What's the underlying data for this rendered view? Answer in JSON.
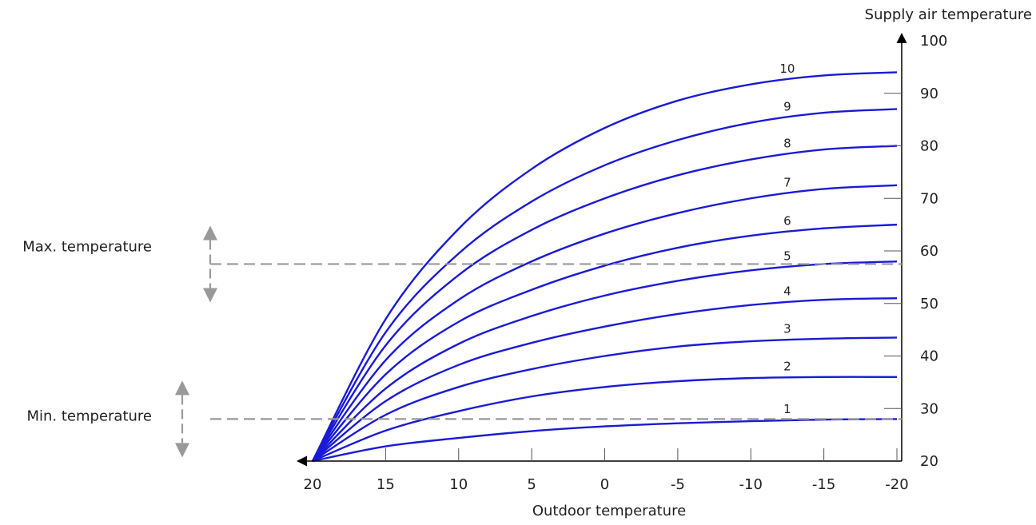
{
  "chart_data": {
    "type": "line",
    "title": "",
    "xlabel": "Outdoor temperature",
    "ylabel": "Supply air temperature",
    "xlim": [
      20,
      -20
    ],
    "ylim": [
      20,
      100
    ],
    "x_ticks": [
      20,
      15,
      10,
      5,
      0,
      -5,
      -10,
      -15,
      -20
    ],
    "y_ticks": [
      20,
      30,
      40,
      50,
      60,
      70,
      80,
      90,
      100
    ],
    "grid": false,
    "legend": "none",
    "line_color": "#1a1ad6",
    "guide_color": "#999999",
    "x": [
      20,
      15,
      10,
      5,
      0,
      -5,
      -10,
      -15,
      -20
    ],
    "series": [
      {
        "name": "1",
        "values": [
          20,
          22.8,
          24.4,
          25.7,
          26.6,
          27.2,
          27.6,
          27.9,
          28
        ]
      },
      {
        "name": "2",
        "values": [
          20,
          25.8,
          29.5,
          32.3,
          34.1,
          35.2,
          35.8,
          36,
          36
        ]
      },
      {
        "name": "3",
        "values": [
          20,
          28.8,
          34.1,
          37.5,
          40,
          41.8,
          42.8,
          43.3,
          43.5
        ]
      },
      {
        "name": "4",
        "values": [
          20,
          31.4,
          38.3,
          42.5,
          45.6,
          48,
          49.7,
          50.7,
          51
        ]
      },
      {
        "name": "5",
        "values": [
          20,
          33.8,
          42.3,
          47.6,
          51.5,
          54.3,
          56.3,
          57.5,
          58
        ]
      },
      {
        "name": "6",
        "values": [
          20,
          36.5,
          46.5,
          52.6,
          57.2,
          60.6,
          62.9,
          64.3,
          65
        ]
      },
      {
        "name": "7",
        "values": [
          20,
          39.2,
          50.7,
          58,
          63.3,
          67.2,
          70,
          71.8,
          72.5
        ]
      },
      {
        "name": "8",
        "values": [
          20,
          42,
          55.4,
          64,
          70,
          74.4,
          77.4,
          79.3,
          80
        ]
      },
      {
        "name": "9",
        "values": [
          20,
          44.5,
          59.5,
          69.4,
          76.3,
          81.1,
          84.4,
          86.3,
          87
        ]
      },
      {
        "name": "10",
        "values": [
          20,
          47,
          64.2,
          75.6,
          83.4,
          88.6,
          91.7,
          93.4,
          94
        ]
      }
    ],
    "annotations": [
      {
        "text": "Max. temperature",
        "y": 57.5
      },
      {
        "text": "Min. temperature",
        "y": 28
      }
    ]
  }
}
